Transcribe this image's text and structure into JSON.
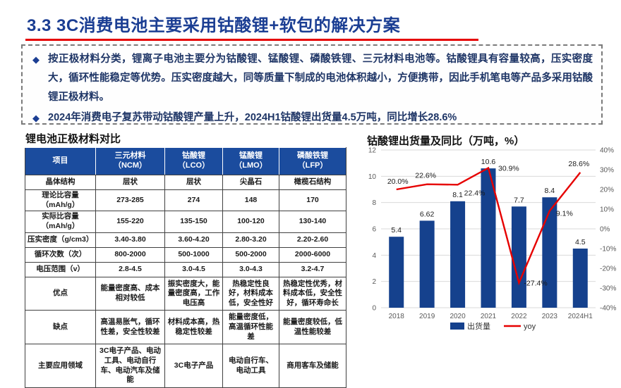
{
  "slide": {
    "title": "3.3 3C消费电池主要采用钴酸锂+软包的解决方案"
  },
  "highlights": {
    "bullets": [
      {
        "text": "按正极材料分类，锂离子电池主要分为钴酸锂、锰酸锂、磷酸铁锂、三元材料电池等。钴酸锂具有容量较高，压实密度大，循环性能稳定等优势。压实密度越大，同等质量下制成的电池体积越小，方便携带，因此手机笔电等产品多采用钴酸锂正极材料。"
      },
      {
        "text": "2024年消费电子复苏带动钴酸锂产量上升，2024H1钴酸锂出货量4.5万吨，同比增长28.6%"
      }
    ]
  },
  "table": {
    "title": "锂电池正极材料对比",
    "headers": [
      "项目",
      "三元材料\n（NCM）",
      "钴酸锂\n（LCO）",
      "锰酸锂\n（LMO）",
      "磷酸铁锂\n（LFP）"
    ],
    "rows": [
      [
        "晶体结构",
        "层状",
        "层状",
        "尖晶石",
        "橄榄石结构"
      ],
      [
        "理论比容量（mAh/g）",
        "273-285",
        "274",
        "148",
        "170"
      ],
      [
        "实际比容量（mAh/g）",
        "155-220",
        "135-150",
        "100-120",
        "130-140"
      ],
      [
        "压实密度（g/cm3）",
        "3.40-3.80",
        "3.60-4.20",
        "2.80-3.20",
        "2.20-2.60"
      ],
      [
        "循环次数（次）",
        "800-2000",
        "500-1000",
        "500-2000",
        "2000-6000"
      ],
      [
        "电压范围（v）",
        "2.8-4.5",
        "3.0-4.5",
        "3.0-4.3",
        "3.2-4.7"
      ],
      [
        "优点",
        "能量密度高、成本相对较低",
        "振实密度大，能量密度高，工作电压高",
        "热稳定性良好，材料成本低，安全性好",
        "热稳定性优秀，材料成本低，安全性好，循环寿命长"
      ],
      [
        "缺点",
        "高温易胀气，循环性差，安全性较差",
        "材料成本高，热稳定性较差",
        "能量密度低，高温循环性能差",
        "能量密度较低，低温性能较差"
      ],
      [
        "主要应用领域",
        "3C电子产品、电动工具、电动自行车、电动汽车及储能",
        "3C电子产品",
        "电动自行车、电动工具",
        "商用客车及储能"
      ]
    ]
  },
  "chart_data": {
    "type": "bar+line",
    "title": "钴酸锂出货量及同比（万吨，%）",
    "categories": [
      "2018",
      "2019",
      "2020",
      "2021",
      "2022",
      "2023",
      "2024H1"
    ],
    "series": [
      {
        "name": "出货量",
        "type": "bar",
        "axis": "left",
        "color": "#15418d",
        "values": [
          5.4,
          6.62,
          8.1,
          10.6,
          7.7,
          8.4,
          4.5
        ],
        "labels": [
          "5.4",
          "6.62",
          "8.1",
          "10.6",
          "7.7",
          "8.4",
          "4.5"
        ]
      },
      {
        "name": "yoy",
        "type": "line",
        "axis": "right",
        "color": "#e60000",
        "values": [
          20.0,
          22.6,
          22.4,
          30.9,
          -27.4,
          9.1,
          28.6
        ],
        "labels": [
          "20.0%",
          "22.6%",
          "22.4%",
          "30.9%",
          "-27.4%",
          "9.1%",
          "28.6%"
        ]
      }
    ],
    "left_axis": {
      "min": 0,
      "max": 12,
      "step": 2,
      "ticks": [
        "0",
        "2",
        "4",
        "6",
        "8",
        "10",
        "12"
      ]
    },
    "right_axis": {
      "min": -40,
      "max": 40,
      "step": 10,
      "ticks": [
        "-40%",
        "-30%",
        "-20%",
        "-10%",
        "0%",
        "10%",
        "20%",
        "30%",
        "40%"
      ]
    },
    "grid": "horizontal",
    "legend_position": "bottom"
  },
  "colors": {
    "title_blue": "#1b3e93",
    "underline_red": "#e60000",
    "header_blue": "#1b4c9e",
    "bar_blue": "#15418d",
    "line_red": "#e60000",
    "tick_gray": "#595959",
    "grid_gray": "#d9d9d9"
  }
}
